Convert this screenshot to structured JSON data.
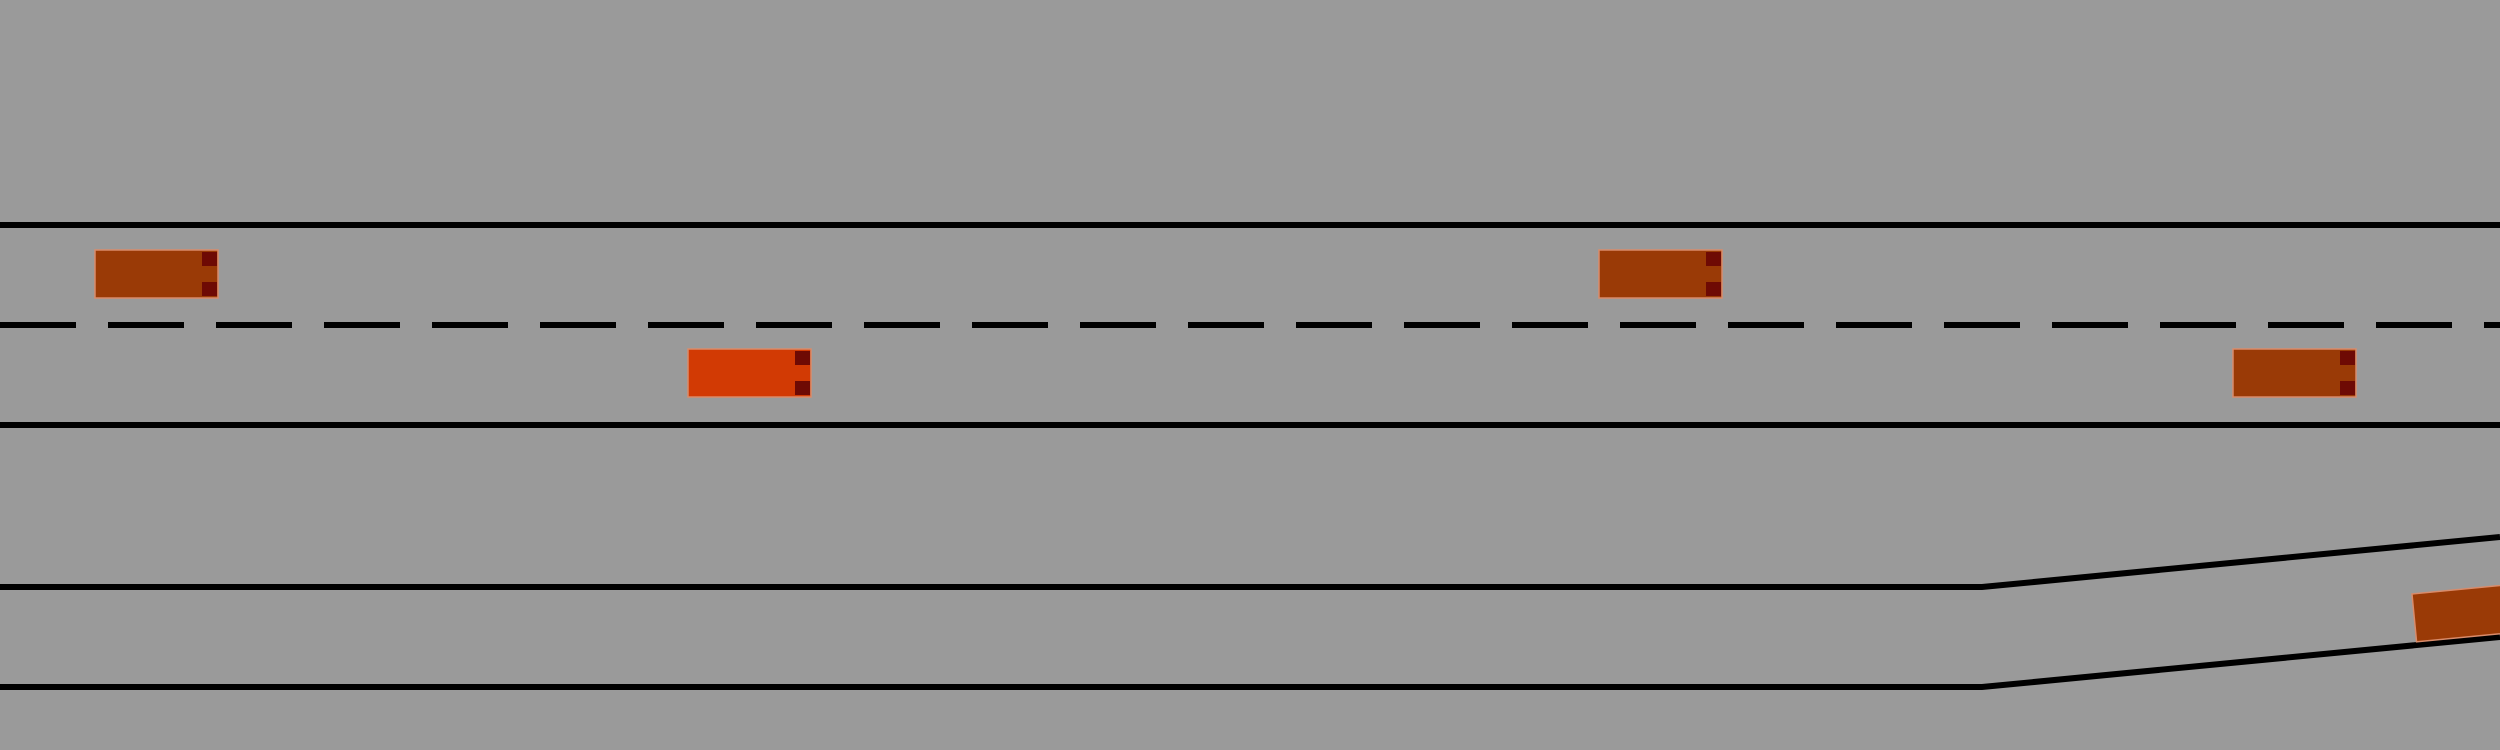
{
  "scene": {
    "background_color": "#9a9a9a",
    "lane_line_color": "#000000",
    "taillight_color": "#6e0a04"
  },
  "vehicles": [
    {
      "name": "vehicle-1",
      "role": "other",
      "color": "#9a3a06"
    },
    {
      "name": "ego-vehicle",
      "role": "ego",
      "color": "#d23a04"
    },
    {
      "name": "vehicle-2",
      "role": "other",
      "color": "#9a3a06"
    },
    {
      "name": "vehicle-3",
      "role": "other",
      "color": "#9a3a06"
    },
    {
      "name": "vehicle-4",
      "role": "other",
      "color": "#9a3a06"
    }
  ]
}
